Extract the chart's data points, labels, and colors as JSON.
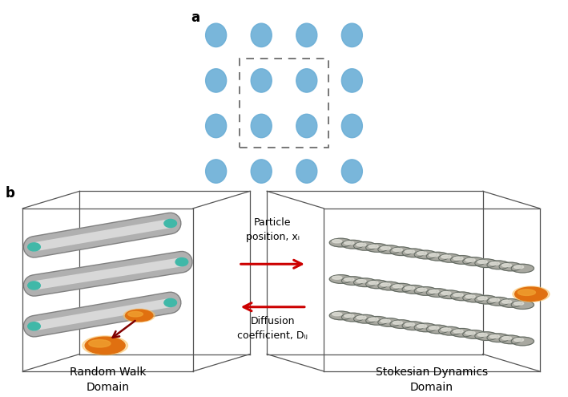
{
  "fig_width": 7.09,
  "fig_height": 4.95,
  "dpi": 100,
  "bg_color": "#ffffff",
  "panel_a_label": "a",
  "panel_b_label": "b",
  "dot_color": "#6baed6",
  "dot_alpha": 0.9,
  "arrow_color": "#cc0000",
  "arrow_text_forward": "Particle\nposition, xᵢ",
  "arrow_text_backward": "Diffusion\ncoefficient, Dᵢⱼ",
  "label_random_walk": "Random Walk\nDomain",
  "label_stokesian": "Stokesian Dynamics\nDomain",
  "cube_color": "#555555",
  "cube_linewidth": 0.9,
  "tube_gray": "#b0b0b0",
  "tube_highlight": "#d8d8d8",
  "tube_shadow": "#808080",
  "tube_end_color": "#40b8a8",
  "sphere_base": "#a8a8a0",
  "sphere_highlight": "#e0e0d8",
  "sphere_edge": "#606860",
  "orange_inner": "#f0a030",
  "orange_outer": "#e07010"
}
